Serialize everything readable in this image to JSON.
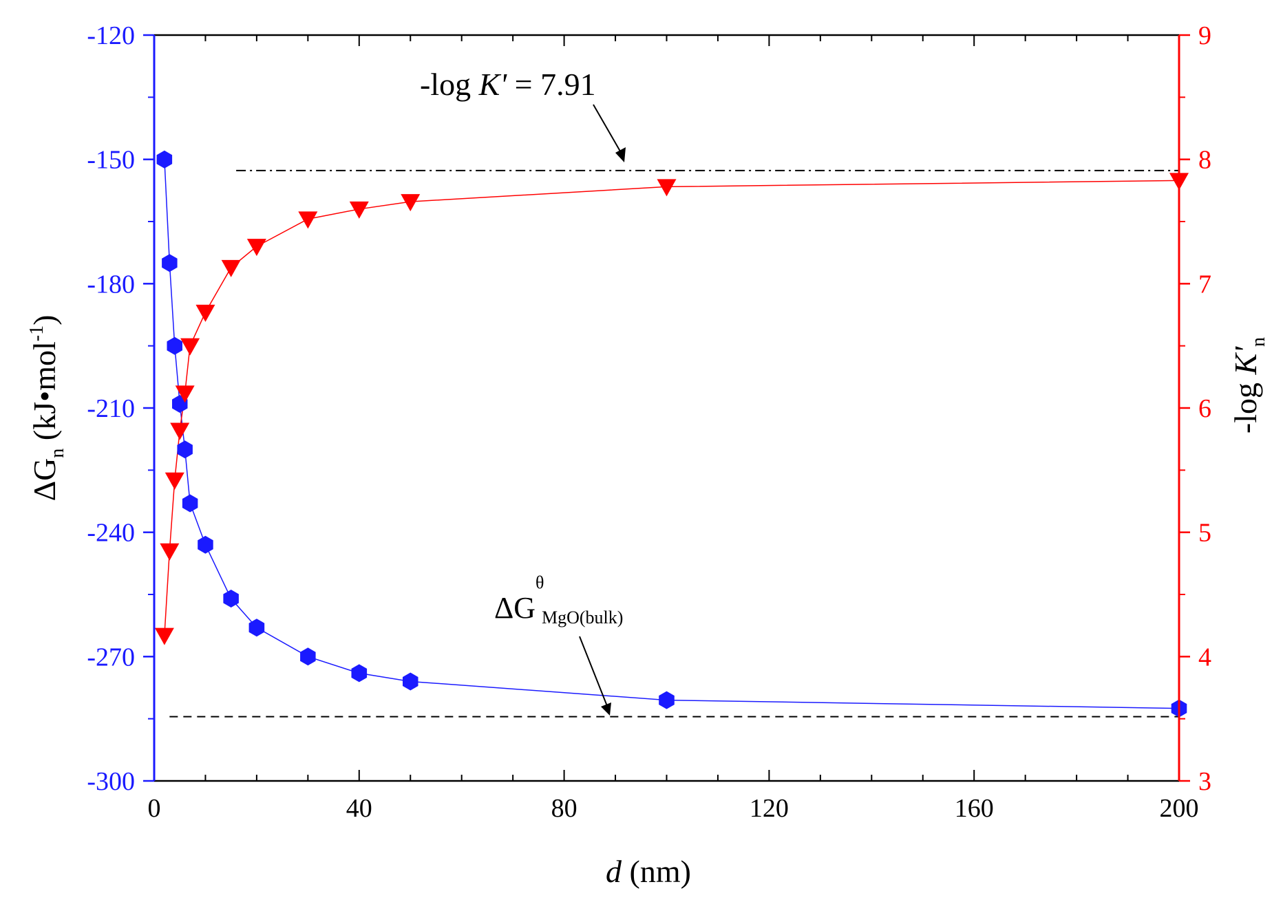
{
  "colors": {
    "left_axis": "#1a1aff",
    "right_axis": "#ff0000",
    "frame": "#000000",
    "ref_line": "#000000"
  },
  "chart_data": {
    "type": "scatter",
    "x": {
      "label_italic": "d",
      "label_rest": " (nm)",
      "range": [
        0,
        200
      ],
      "ticks": [
        0,
        40,
        80,
        120,
        160,
        200
      ],
      "minor_step": 10
    },
    "y_left": {
      "label_prefix": "ΔG",
      "label_sub": "n",
      "label_units": " (kJ•mol",
      "label_sup": "-1",
      "label_close": ")",
      "range": [
        -300,
        -120
      ],
      "ticks": [
        -300,
        -270,
        -240,
        -210,
        -180,
        -150,
        -120
      ]
    },
    "y_right": {
      "label_prefix": "-log ",
      "label_italic": "K'",
      "label_sub": "n",
      "range": [
        3,
        9
      ],
      "ticks": [
        3,
        4,
        5,
        6,
        7,
        8,
        9
      ]
    },
    "series": [
      {
        "axis": "left",
        "marker": "hexagon",
        "x": [
          2,
          3,
          4,
          5,
          6,
          7,
          10,
          15,
          20,
          30,
          40,
          50,
          100,
          200
        ],
        "y": [
          -150,
          -175,
          -195,
          -209,
          -220,
          -233,
          -243,
          -256,
          -263,
          -270,
          -274,
          -276,
          -280.5,
          -282.5
        ]
      },
      {
        "axis": "right",
        "marker": "triangle-down",
        "x": [
          2,
          3,
          4,
          5,
          6,
          7,
          10,
          15,
          20,
          30,
          40,
          50,
          100,
          200
        ],
        "y": [
          4.17,
          4.85,
          5.42,
          5.82,
          6.12,
          6.5,
          6.77,
          7.13,
          7.3,
          7.52,
          7.6,
          7.66,
          7.78,
          7.83
        ]
      }
    ],
    "reference_lines": [
      {
        "axis": "right",
        "value": 7.91,
        "style": "dash-dot",
        "x_from": 16,
        "x_to": 200
      },
      {
        "axis": "left",
        "value": -284.5,
        "style": "dashed",
        "x_from": 3,
        "x_to": 200
      }
    ],
    "annotations": {
      "logk": {
        "prefix": "-log ",
        "italic": "K'",
        "suffix": " = 7.91"
      },
      "bulk": {
        "main": "ΔG",
        "sup": "θ",
        "sub": "MgO(bulk)"
      }
    }
  }
}
